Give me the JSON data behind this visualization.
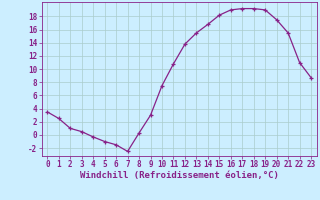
{
  "x": [
    0,
    1,
    2,
    3,
    4,
    5,
    6,
    7,
    8,
    9,
    10,
    11,
    12,
    13,
    14,
    15,
    16,
    17,
    18,
    19,
    20,
    21,
    22,
    23
  ],
  "y": [
    3.5,
    2.5,
    1.0,
    0.5,
    -0.3,
    -1.0,
    -1.5,
    -2.5,
    0.3,
    3.0,
    7.5,
    10.8,
    13.8,
    15.5,
    16.8,
    18.2,
    19.0,
    19.2,
    19.2,
    19.0,
    17.5,
    15.5,
    11.0,
    8.7
  ],
  "line_color": "#882288",
  "marker": "+",
  "bg_color": "#cceeff",
  "grid_color": "#aacccc",
  "xlabel": "Windchill (Refroidissement éolien,°C)",
  "ylabel_ticks": [
    -2,
    0,
    2,
    4,
    6,
    8,
    10,
    12,
    14,
    16,
    18
  ],
  "xlim": [
    -0.5,
    23.5
  ],
  "ylim": [
    -3.2,
    20.2
  ],
  "tick_color": "#882288",
  "font_size_tick": 5.5,
  "font_size_label": 6.5
}
